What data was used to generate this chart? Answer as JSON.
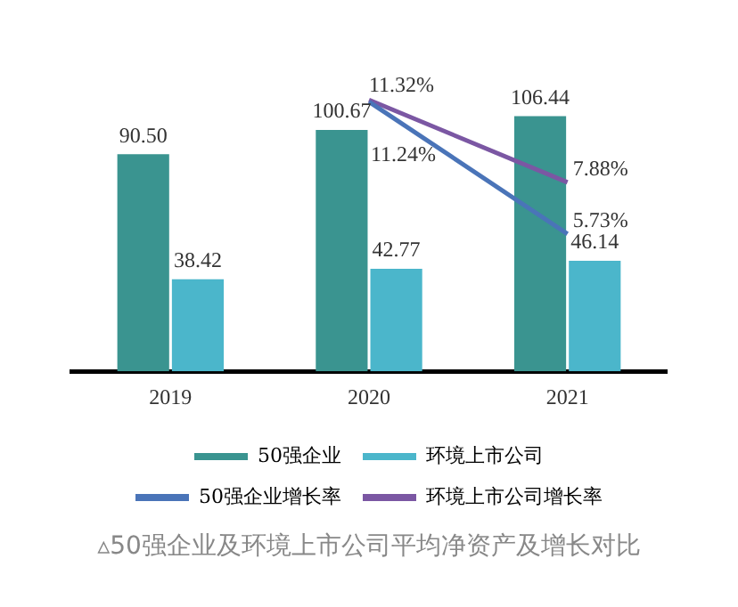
{
  "chart_data": {
    "type": "bar",
    "title": "▵50强企业及环境上市公司平均净资产及增长对比",
    "categories": [
      "2019",
      "2020",
      "2021"
    ],
    "series": [
      {
        "name": "50强企业",
        "color": "#3a9490",
        "values": [
          90.5,
          100.67,
          106.44
        ],
        "value_labels": [
          "90.50",
          "100.67",
          "106.44"
        ]
      },
      {
        "name": "环境上市公司",
        "color": "#4bb6cb",
        "values": [
          38.42,
          42.77,
          46.14
        ],
        "value_labels": [
          "38.42",
          "42.77",
          "46.14"
        ]
      },
      {
        "name": "50强企业增长率",
        "type": "line",
        "axis": "y2",
        "color": "#4a74b8",
        "values": [
          null,
          11.24,
          5.73
        ],
        "value_labels": [
          null,
          "11.24%",
          "5.73%"
        ]
      },
      {
        "name": "环境上市公司增长率",
        "type": "line",
        "axis": "y2",
        "color": "#7b57a3",
        "values": [
          null,
          11.32,
          7.88
        ],
        "value_labels": [
          null,
          "11.32%",
          "7.88%"
        ]
      }
    ],
    "tick_labels": "x",
    "grid": false,
    "legend": "bottom",
    "marker": "none"
  }
}
